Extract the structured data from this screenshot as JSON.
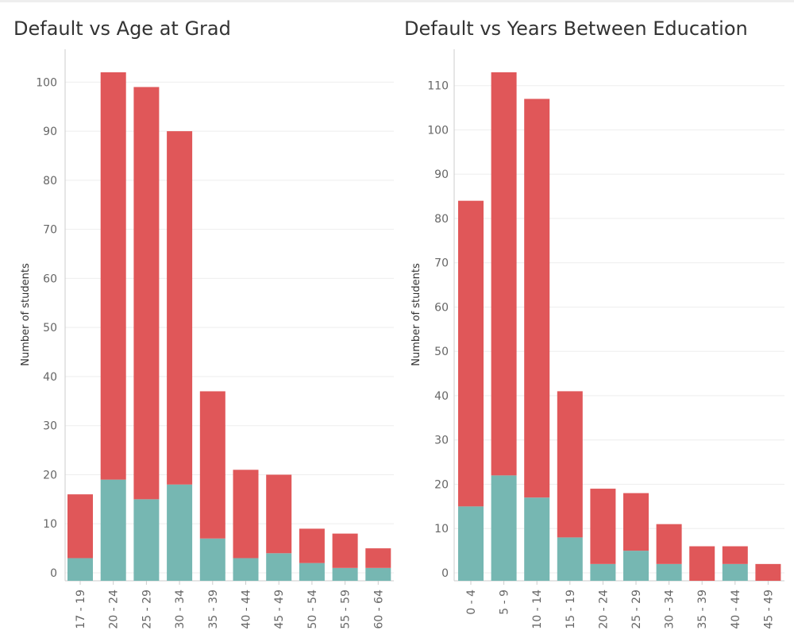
{
  "colors": {
    "default": "#e05759",
    "no_default": "#76b7b2",
    "grid": "#eeeeee",
    "axis": "#cccccc"
  },
  "chart_data": [
    {
      "type": "bar",
      "stacked": true,
      "title": "Default vs Age at Grad",
      "xlabel": "",
      "ylabel": "Number of students",
      "ylim": [
        0,
        102
      ],
      "yticks": [
        0,
        10,
        20,
        30,
        40,
        50,
        60,
        70,
        80,
        90,
        100
      ],
      "categories": [
        "17 - 19",
        "20 - 24",
        "25 - 29",
        "30 - 34",
        "35 - 39",
        "40 - 44",
        "45 - 49",
        "50 - 54",
        "55 - 59",
        "60 - 64"
      ],
      "series": [
        {
          "values": [
            3,
            19,
            15,
            18,
            7,
            3,
            4,
            2,
            1,
            1
          ]
        },
        {
          "values": [
            13,
            83,
            84,
            72,
            30,
            18,
            16,
            7,
            7,
            4
          ]
        }
      ],
      "legend": "none",
      "grid": true
    },
    {
      "type": "bar",
      "stacked": true,
      "title": "Default vs Years Between Education",
      "xlabel": "",
      "ylabel": "Number of students",
      "ylim": [
        0,
        113
      ],
      "yticks": [
        0,
        10,
        20,
        30,
        40,
        50,
        60,
        70,
        80,
        90,
        100,
        110
      ],
      "categories": [
        "0 - 4",
        "5 - 9",
        "10 - 14",
        "15 - 19",
        "20 - 24",
        "25 - 29",
        "30 - 34",
        "35 - 39",
        "40 - 44",
        "45 - 49"
      ],
      "series": [
        {
          "values": [
            15,
            22,
            17,
            8,
            2,
            5,
            2,
            0,
            2,
            0
          ]
        },
        {
          "values": [
            69,
            91,
            90,
            33,
            17,
            13,
            9,
            6,
            4,
            2
          ]
        }
      ],
      "legend": "none",
      "grid": true
    }
  ]
}
